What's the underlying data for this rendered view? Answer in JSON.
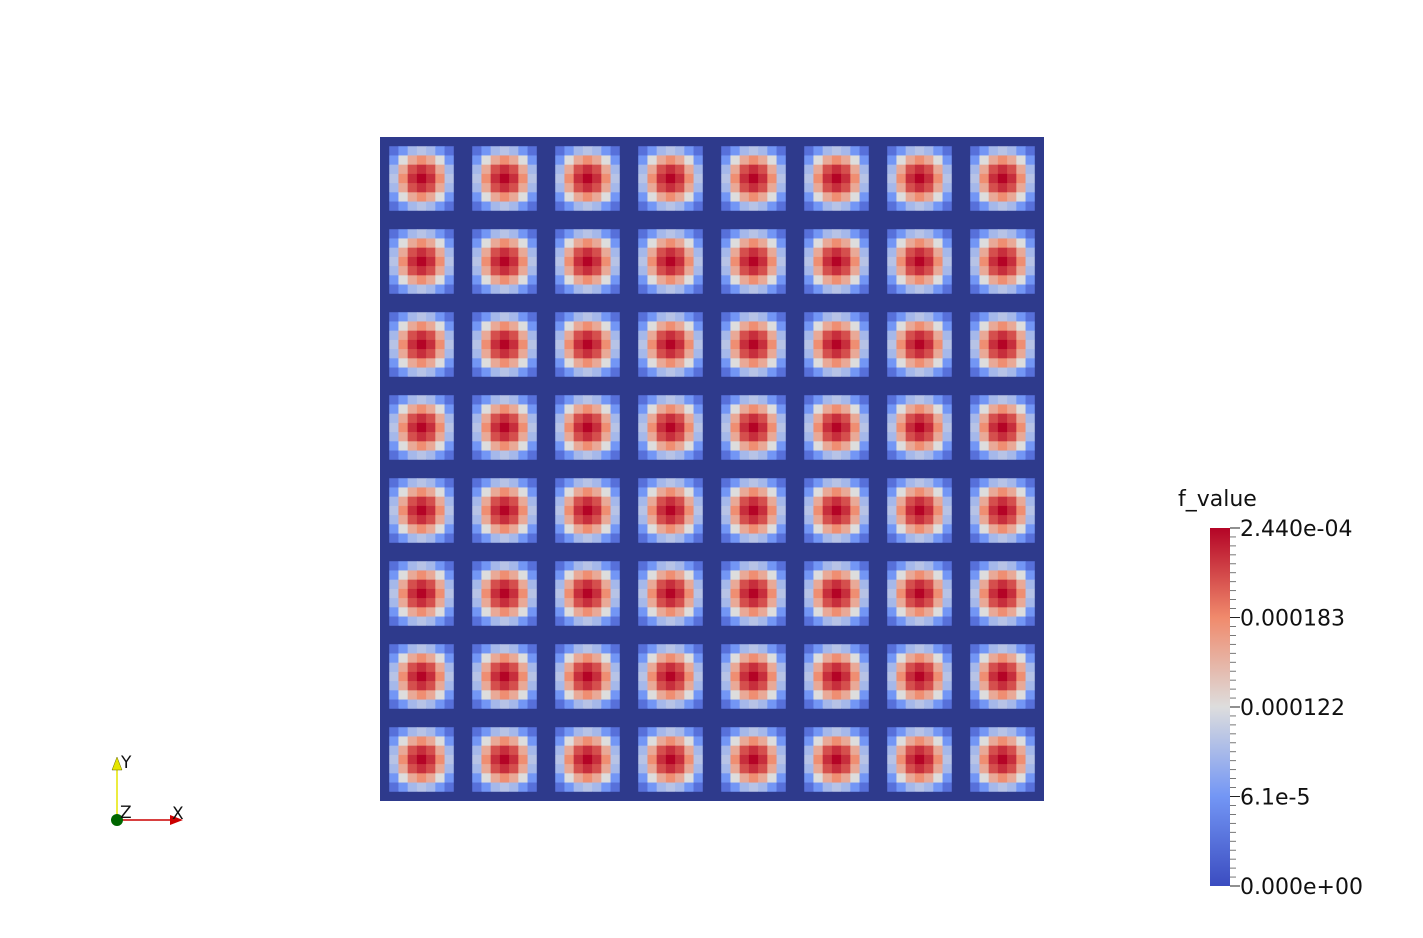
{
  "chart_data": {
    "type": "heatmap",
    "grid_repeats": 8,
    "cells_per_tile": 9,
    "tile_pattern": [
      [
        0,
        0,
        0,
        0,
        0,
        0,
        0,
        0,
        0
      ],
      [
        0,
        3e-05,
        6.1e-05,
        9e-05,
        0.0001,
        9e-05,
        6.1e-05,
        3e-05,
        0
      ],
      [
        0,
        6.1e-05,
        0.000122,
        0.00016,
        0.00018,
        0.00016,
        0.000122,
        6.1e-05,
        0
      ],
      [
        0,
        9e-05,
        0.00016,
        0.00021,
        0.000225,
        0.00021,
        0.00016,
        9e-05,
        0
      ],
      [
        0,
        0.0001,
        0.00018,
        0.000225,
        0.000244,
        0.000225,
        0.00018,
        0.0001,
        0
      ],
      [
        0,
        9e-05,
        0.00016,
        0.00021,
        0.000225,
        0.00021,
        0.00016,
        9e-05,
        0
      ],
      [
        0,
        6.1e-05,
        0.000122,
        0.00016,
        0.00018,
        0.00016,
        0.000122,
        6.1e-05,
        0
      ],
      [
        0,
        3e-05,
        6.1e-05,
        9e-05,
        0.0001,
        9e-05,
        6.1e-05,
        3e-05,
        0
      ],
      [
        0,
        0,
        0,
        0,
        0,
        0,
        0,
        0,
        0
      ]
    ],
    "vmin": 0,
    "vmax": 0.000244,
    "colormap": "cool-to-warm",
    "colormap_stops": [
      {
        "v": 0.0,
        "color": "#3b4cc0"
      },
      {
        "v": 0.25,
        "color": "#7396f5"
      },
      {
        "v": 0.5,
        "color": "#dddddd"
      },
      {
        "v": 0.75,
        "color": "#f08a6c"
      },
      {
        "v": 1.0,
        "color": "#b40426"
      }
    ],
    "colorbar": {
      "title": "f_value",
      "tick_labels": [
        {
          "v": 0.000244,
          "text": "2.440e-04"
        },
        {
          "v": 0.000183,
          "text": "0.000183"
        },
        {
          "v": 0.000122,
          "text": "0.000122"
        },
        {
          "v": 6.1e-05,
          "text": "6.1e-5"
        },
        {
          "v": 0.0,
          "text": "0.000e+00"
        }
      ]
    }
  },
  "orientation_axes": {
    "x_label": "X",
    "y_label": "Y",
    "z_label": "Z",
    "x_color": "#cc0000",
    "y_color": "#e6e600",
    "z_color": "#006600"
  }
}
